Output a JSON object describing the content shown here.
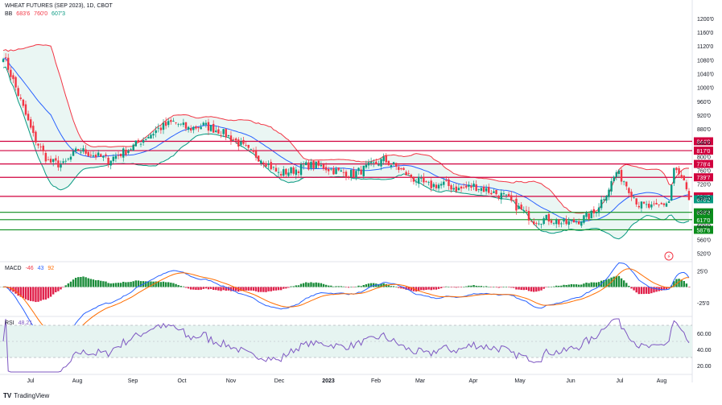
{
  "header": {
    "symbol_line": "WHEAT FUTURES (SEP 2023), 1D, CBOT",
    "bb_label": "BB",
    "bb_values": [
      "683'6",
      "760'0",
      "607'3"
    ],
    "macd_label": "MACD",
    "macd_values": [
      "-46",
      "43",
      "92"
    ],
    "rsi_label": "RSI",
    "rsi_value": "48.21"
  },
  "branding": {
    "logo": "TV",
    "name": "TradingView"
  },
  "colors": {
    "up": "#089981",
    "down": "#f23645",
    "bb_upper": "#f23645",
    "bb_lower": "#089981",
    "bb_basis": "#2962ff",
    "bb_fill": "#e6f4f1",
    "res_line": "#d1003e",
    "sup_line": "#0b8d1c",
    "macd": "#2962ff",
    "signal": "#ff6d00",
    "rsi": "#7e57c2",
    "axis_text": "#131722"
  },
  "chart_data": [
    {
      "type": "candlestick",
      "title": "WHEAT FUTURES (SEP 2023), 1D, CBOT",
      "ylim": [
        5000,
        12300
      ],
      "yticks": [
        12000,
        11600,
        11200,
        10800,
        10400,
        10000,
        9600,
        9200,
        8800,
        8400,
        8000,
        7600,
        7200,
        6800,
        6400,
        6000,
        5600,
        5200
      ],
      "ytick_labels": [
        "1200'0",
        "1160'0",
        "1120'0",
        "1080'0",
        "1040'0",
        "1000'0",
        "960'0",
        "920'0",
        "880'0",
        "840'0",
        "800'0",
        "760'0",
        "720'0",
        "680'0",
        "640'0",
        "600'0",
        "560'0",
        "520'0"
      ],
      "xlabels": [
        "Jul",
        "Aug",
        "Sep",
        "Oct",
        "Nov",
        "Dec",
        "2023",
        "Feb",
        "Mar",
        "Apr",
        "May",
        "Jun",
        "Jul",
        "Aug"
      ],
      "close_anchors": [
        [
          0,
          10950
        ],
        [
          6,
          9800
        ],
        [
          12,
          8600
        ],
        [
          18,
          7850
        ],
        [
          24,
          7750
        ],
        [
          30,
          8200
        ],
        [
          36,
          8050
        ],
        [
          42,
          7900
        ],
        [
          50,
          8200
        ],
        [
          56,
          8500
        ],
        [
          62,
          8800
        ],
        [
          68,
          9000
        ],
        [
          74,
          8800
        ],
        [
          80,
          8900
        ],
        [
          86,
          8750
        ],
        [
          92,
          8500
        ],
        [
          98,
          8150
        ],
        [
          104,
          7900
        ],
        [
          110,
          7500
        ],
        [
          116,
          7600
        ],
        [
          122,
          7750
        ],
        [
          128,
          7700
        ],
        [
          134,
          7550
        ],
        [
          140,
          7500
        ],
        [
          146,
          7700
        ],
        [
          152,
          7900
        ],
        [
          158,
          7650
        ],
        [
          164,
          7350
        ],
        [
          170,
          7150
        ],
        [
          176,
          7200
        ],
        [
          182,
          7050
        ],
        [
          188,
          7150
        ],
        [
          194,
          7000
        ],
        [
          200,
          6850
        ],
        [
          206,
          6500
        ],
        [
          212,
          6150
        ],
        [
          218,
          6200
        ],
        [
          224,
          6050
        ],
        [
          230,
          6150
        ],
        [
          236,
          6350
        ],
        [
          242,
          7100
        ],
        [
          245,
          7550
        ],
        [
          248,
          7300
        ],
        [
          254,
          6600
        ],
        [
          260,
          6500
        ],
        [
          266,
          6700
        ],
        [
          268,
          7650
        ],
        [
          272,
          7250
        ],
        [
          274,
          6650
        ]
      ],
      "horizontal_levels": [
        {
          "label": "844'0",
          "value": 8440,
          "kind": "resistance"
        },
        {
          "label": "817'0",
          "value": 8170,
          "kind": "resistance"
        },
        {
          "label": "778'4",
          "value": 7785,
          "kind": "resistance"
        },
        {
          "label": "739'7",
          "value": 7397,
          "kind": "resistance"
        },
        {
          "label": "684'5",
          "value": 6845,
          "kind": "resistance"
        },
        {
          "label": "638'3",
          "value": 6383,
          "kind": "support"
        },
        {
          "label": "617'0",
          "value": 6170,
          "kind": "support"
        },
        {
          "label": "587'6",
          "value": 5876,
          "kind": "support"
        }
      ],
      "last_price_label": "676'2",
      "last_price": 6762,
      "series": [
        "Bollinger Bands (20,2)"
      ]
    },
    {
      "type": "histogram",
      "title": "MACD",
      "ytick_labels": [
        "25'0",
        "-25'0"
      ],
      "yticks": [
        25,
        -25
      ],
      "ylim": [
        -45,
        36
      ]
    },
    {
      "type": "line",
      "title": "RSI",
      "ytick_labels": [
        "60.00",
        "40.00",
        "20.00"
      ],
      "yticks": [
        60,
        40,
        20
      ],
      "bands": [
        30,
        70
      ],
      "midline": 50,
      "ylim": [
        12,
        78
      ],
      "last_value": 48.21
    }
  ]
}
